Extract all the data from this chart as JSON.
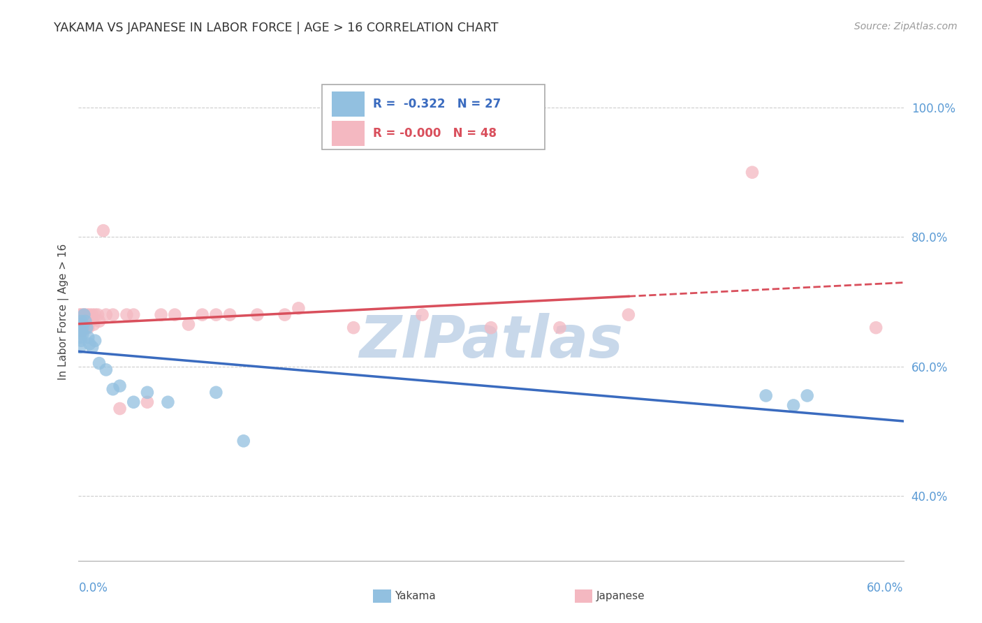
{
  "title": "YAKAMA VS JAPANESE IN LABOR FORCE | AGE > 16 CORRELATION CHART",
  "source_text": "Source: ZipAtlas.com",
  "ylabel": "In Labor Force | Age > 16",
  "legend_label1": "Yakama",
  "legend_label2": "Japanese",
  "r1": "-0.322",
  "n1": "27",
  "r2": "-0.000",
  "n2": "48",
  "color_blue": "#92c0e0",
  "color_pink": "#f4b8c1",
  "color_blue_line": "#3a6bbf",
  "color_pink_line": "#d94f5c",
  "watermark_color": "#c8d8ea",
  "xlim": [
    0.0,
    0.6
  ],
  "ylim": [
    0.3,
    1.07
  ],
  "yticks": [
    0.4,
    0.6,
    0.8,
    1.0
  ],
  "ytick_labels": [
    "40.0%",
    "60.0%",
    "80.0%",
    "100.0%"
  ],
  "grid_color": "#cccccc",
  "background_color": "#ffffff",
  "yakama_x": [
    0.001,
    0.001,
    0.001,
    0.002,
    0.002,
    0.002,
    0.003,
    0.003,
    0.004,
    0.005,
    0.006,
    0.007,
    0.008,
    0.01,
    0.012,
    0.015,
    0.02,
    0.025,
    0.03,
    0.04,
    0.05,
    0.065,
    0.1,
    0.12,
    0.5,
    0.52,
    0.53
  ],
  "yakama_y": [
    0.665,
    0.645,
    0.63,
    0.67,
    0.655,
    0.64,
    0.66,
    0.65,
    0.68,
    0.67,
    0.66,
    0.645,
    0.635,
    0.63,
    0.64,
    0.605,
    0.595,
    0.565,
    0.57,
    0.545,
    0.56,
    0.545,
    0.56,
    0.485,
    0.555,
    0.54,
    0.555
  ],
  "japanese_x": [
    0.001,
    0.001,
    0.001,
    0.001,
    0.002,
    0.002,
    0.002,
    0.003,
    0.003,
    0.003,
    0.004,
    0.004,
    0.005,
    0.005,
    0.006,
    0.006,
    0.007,
    0.007,
    0.008,
    0.009,
    0.01,
    0.011,
    0.012,
    0.014,
    0.015,
    0.018,
    0.02,
    0.025,
    0.03,
    0.035,
    0.04,
    0.05,
    0.06,
    0.07,
    0.08,
    0.09,
    0.1,
    0.11,
    0.13,
    0.15,
    0.16,
    0.2,
    0.25,
    0.3,
    0.35,
    0.4,
    0.49,
    0.58
  ],
  "japanese_y": [
    0.68,
    0.67,
    0.66,
    0.65,
    0.68,
    0.67,
    0.66,
    0.675,
    0.665,
    0.655,
    0.68,
    0.665,
    0.675,
    0.66,
    0.68,
    0.665,
    0.675,
    0.66,
    0.68,
    0.67,
    0.68,
    0.665,
    0.68,
    0.68,
    0.67,
    0.81,
    0.68,
    0.68,
    0.535,
    0.68,
    0.68,
    0.545,
    0.68,
    0.68,
    0.665,
    0.68,
    0.68,
    0.68,
    0.68,
    0.68,
    0.69,
    0.66,
    0.68,
    0.66,
    0.66,
    0.68,
    0.9,
    0.66
  ]
}
